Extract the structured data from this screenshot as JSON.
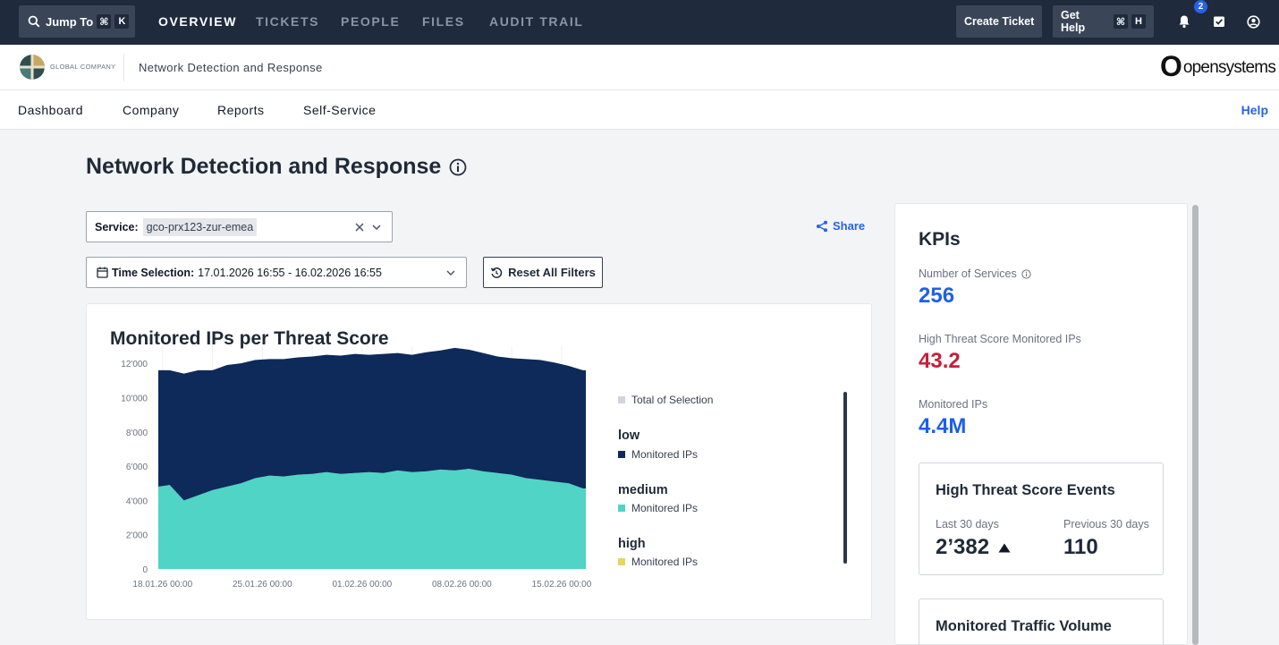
{
  "topbar": {
    "jump_label": "Jump To",
    "jump_key1": "⌘",
    "jump_key2": "K",
    "tabs": [
      {
        "label": "OVERVIEW"
      },
      {
        "label": "TICKETS"
      },
      {
        "label": "PEOPLE"
      },
      {
        "label": "FILES"
      },
      {
        "label": "AUDIT TRAIL"
      }
    ],
    "create_ticket": "Create Ticket",
    "get_help": "Get Help",
    "help_key1": "⌘",
    "help_key2": "H",
    "notif_count": "2"
  },
  "brand": {
    "company": "GLOBAL COMPANY",
    "title": "Network Detection and Response",
    "os_o": "O",
    "os_text": "opensystems"
  },
  "subnav": {
    "items": [
      {
        "label": "Dashboard"
      },
      {
        "label": "Company"
      },
      {
        "label": "Reports"
      },
      {
        "label": "Self-Service"
      }
    ],
    "help": "Help"
  },
  "page": {
    "title": "Network Detection and Response",
    "service_label": "Service:",
    "service_value": "gco-prx123-zur-emea",
    "time_label": "Time Selection:",
    "time_value": "17.01.2026 16:55 - 16.02.2026 16:55",
    "share": "Share",
    "reset": "Reset All Filters"
  },
  "chart": {
    "title": "Monitored IPs per Threat Score",
    "legend": {
      "total": "Total of Selection",
      "groups": [
        {
          "head": "low",
          "item": "Monitored IPs",
          "color": "#0e2a5a"
        },
        {
          "head": "medium",
          "item": "Monitored IPs",
          "color": "#4fd4c5"
        },
        {
          "head": "high",
          "item": "Monitored IPs",
          "color": "#e8d55b"
        }
      ],
      "total_color": "#d1d5db"
    }
  },
  "chart_data": {
    "type": "area",
    "stacked": true,
    "title": "Monitored IPs per Threat Score",
    "xlabel": "",
    "ylabel": "",
    "ylim": [
      0,
      13000
    ],
    "y_ticks": [
      "0",
      "2'000",
      "4'000",
      "6'000",
      "8'000",
      "10'000",
      "12'000"
    ],
    "y_tick_values": [
      0,
      2000,
      4000,
      6000,
      8000,
      10000,
      12000
    ],
    "x_ticks": [
      "18.01.26 00:00",
      "25.01.26 00:00",
      "01.02.26 00:00",
      "08.02.26 00:00",
      "15.02.26 00:00"
    ],
    "x_tick_days": [
      1,
      8,
      15,
      22,
      29
    ],
    "x_range_days": [
      0.7,
      30.7
    ],
    "x": [
      0.7,
      1.5,
      2.5,
      3.5,
      4.5,
      5.5,
      6.5,
      7.5,
      8.5,
      9.5,
      10.5,
      11.5,
      12.5,
      13.5,
      14.5,
      15.5,
      16.5,
      17.5,
      18.5,
      19.5,
      20.5,
      21.5,
      22.5,
      23.5,
      24.5,
      25.5,
      26.5,
      27.5,
      28.5,
      29.5,
      30.5,
      30.7
    ],
    "series": [
      {
        "name": "high",
        "color": "#e8d55b",
        "values": [
          0,
          0,
          0,
          0,
          0,
          0,
          0,
          0,
          0,
          0,
          0,
          0,
          0,
          0,
          0,
          0,
          0,
          0,
          0,
          0,
          0,
          0,
          0,
          0,
          0,
          0,
          0,
          0,
          0,
          0,
          0,
          0
        ]
      },
      {
        "name": "medium",
        "color": "#4fd4c5",
        "values": [
          4800,
          4900,
          4000,
          4300,
          4600,
          4800,
          5000,
          5300,
          5450,
          5400,
          5500,
          5550,
          5650,
          5550,
          5600,
          5650,
          5600,
          5750,
          5650,
          5700,
          5800,
          5750,
          5850,
          5700,
          5600,
          5500,
          5300,
          5200,
          5100,
          5000,
          4700,
          4700
        ]
      },
      {
        "name": "low",
        "color": "#0e2a5a",
        "values": [
          6800,
          6700,
          7400,
          7300,
          7000,
          7100,
          7000,
          6900,
          6800,
          6850,
          6850,
          6850,
          6850,
          6900,
          6950,
          6850,
          6950,
          6850,
          6850,
          6950,
          6950,
          7150,
          6950,
          6900,
          6800,
          6800,
          6950,
          7000,
          6950,
          6850,
          6900,
          6900
        ]
      }
    ]
  },
  "kpis": {
    "title": "KPIs",
    "services_label": "Number of Services",
    "services_value": "256",
    "high_label": "High Threat Score Monitored IPs",
    "high_value": "43.2",
    "ips_label": "Monitored IPs",
    "ips_value": "4.4M",
    "colors": {
      "blue": "#1d5fe8",
      "red": "#c81e3a"
    },
    "events": {
      "title": "High Threat Score Events",
      "last_label": "Last 30 days",
      "last_value": "2’382",
      "prev_label": "Previous 30 days",
      "prev_value": "110"
    },
    "traffic_title": "Monitored Traffic Volume"
  }
}
